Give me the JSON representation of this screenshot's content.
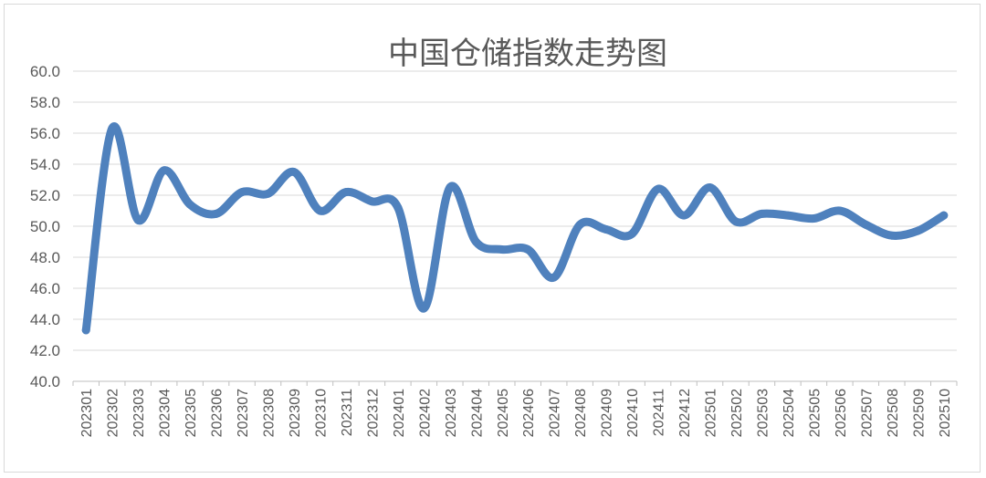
{
  "chart_data": {
    "type": "line",
    "title": "中国仓储指数走势图",
    "xlabel": "",
    "ylabel": "",
    "ylim": [
      40.0,
      60.0
    ],
    "yticks": [
      "40.0",
      "42.0",
      "44.0",
      "46.0",
      "48.0",
      "50.0",
      "52.0",
      "54.0",
      "56.0",
      "58.0",
      "60.0"
    ],
    "grid": true,
    "legend": "none",
    "categories": [
      "202301",
      "202302",
      "202303",
      "202304",
      "202305",
      "202306",
      "202307",
      "202308",
      "202309",
      "202310",
      "202311",
      "202312",
      "202401",
      "202402",
      "202403",
      "202404",
      "202405",
      "202406",
      "202407",
      "202408",
      "202409",
      "202410",
      "202411",
      "202412",
      "202501",
      "202502",
      "202503",
      "202504",
      "202505",
      "202506",
      "202507",
      "202508",
      "202509",
      "202510"
    ],
    "series": [
      {
        "color": "#4f81bd",
        "values": [
          43.3,
          56.3,
          50.4,
          53.6,
          51.4,
          50.8,
          52.2,
          52.1,
          53.5,
          51.0,
          52.2,
          51.6,
          51.2,
          44.7,
          52.5,
          49.0,
          48.5,
          48.5,
          46.7,
          50.1,
          49.8,
          49.5,
          52.4,
          50.7,
          52.5,
          50.3,
          50.8,
          50.7,
          50.5,
          51.0,
          50.1,
          49.4,
          49.7,
          50.7
        ]
      }
    ]
  }
}
